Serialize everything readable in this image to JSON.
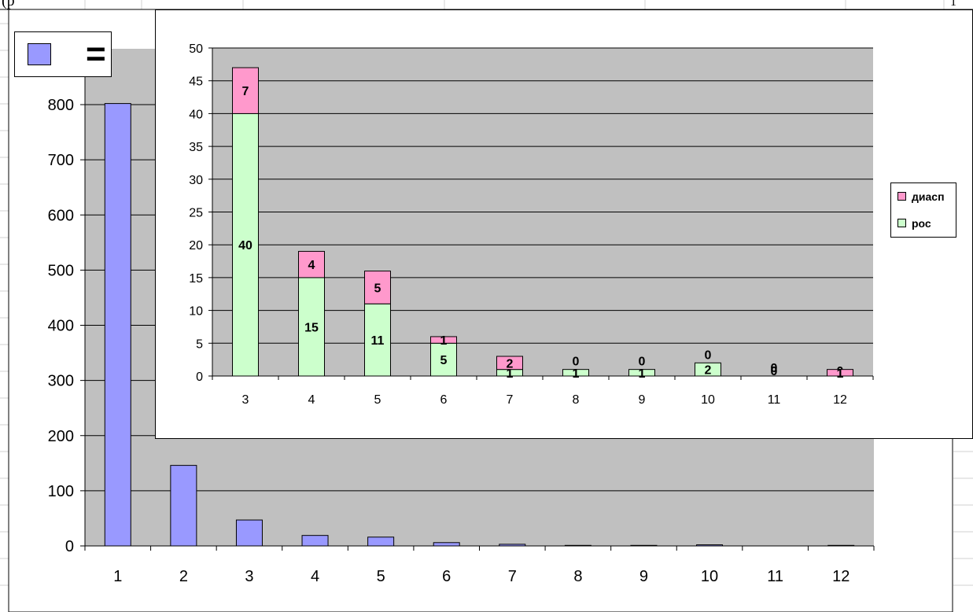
{
  "fragment_text": "(р",
  "corner_mark": "1",
  "legend_key": {
    "label": "=",
    "color": "#9999ff"
  },
  "chart_data": [
    {
      "type": "bar",
      "categories": [
        "1",
        "2",
        "3",
        "4",
        "5",
        "6",
        "7",
        "8",
        "9",
        "10",
        "11",
        "12"
      ],
      "series": [
        {
          "values": [
            802,
            146,
            47,
            19,
            16,
            6,
            3,
            1,
            1,
            2,
            0,
            1
          ],
          "color": "#9999ff"
        }
      ],
      "ylim": [
        0,
        800
      ],
      "yticks": [
        0,
        100,
        200,
        300,
        400,
        500,
        600,
        700,
        800
      ],
      "plot_background": "#c0c0c0",
      "grid": true
    },
    {
      "type": "bar",
      "stacked": true,
      "categories": [
        "3",
        "4",
        "5",
        "6",
        "7",
        "8",
        "9",
        "10",
        "11",
        "12"
      ],
      "series": [
        {
          "name": "рос",
          "values": [
            40,
            15,
            11,
            5,
            1,
            1,
            1,
            2,
            0,
            0
          ],
          "color": "#ccffcc"
        },
        {
          "name": "диасп",
          "values": [
            7,
            4,
            5,
            1,
            2,
            0,
            0,
            0,
            0,
            1
          ],
          "color": "#ff99cc"
        }
      ],
      "ylim": [
        0,
        50
      ],
      "yticks": [
        0,
        5,
        10,
        15,
        20,
        25,
        30,
        35,
        40,
        45,
        50
      ],
      "plot_background": "#c0c0c0",
      "grid": true,
      "legend": "right"
    }
  ]
}
